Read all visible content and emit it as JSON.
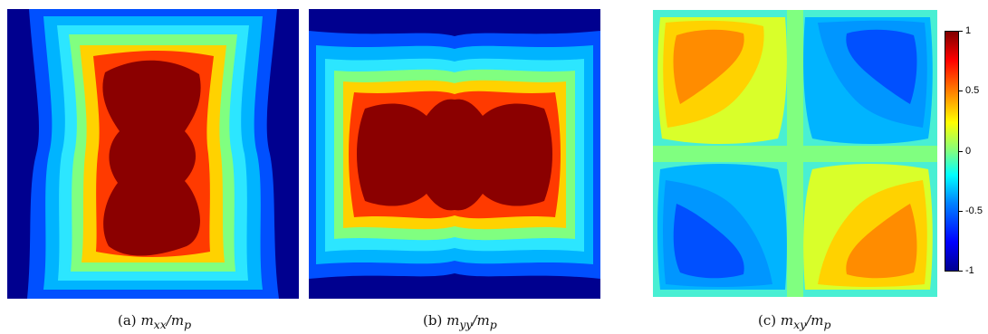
{
  "captions": [
    {
      "tag": "(a)",
      "math": "m_xx/m_p"
    },
    {
      "tag": "(b)",
      "math": "m_yy/m_p"
    },
    {
      "tag": "(c)",
      "math": "m_xy/m_p"
    }
  ],
  "colorbar": {
    "ticks": [
      {
        "value": 1,
        "label": "1"
      },
      {
        "value": 0.5,
        "label": "0.5"
      },
      {
        "value": 0,
        "label": "0"
      },
      {
        "value": -0.5,
        "label": "-0.5"
      },
      {
        "value": -1,
        "label": "-1"
      }
    ],
    "min": -1,
    "max": 1,
    "colormap": "jet"
  },
  "colors": {
    "dark_blue": "#00008f",
    "blue": "#0050ff",
    "light_blue": "#00b4ff",
    "cyan": "#2ce6ff",
    "green": "#80ff80",
    "yellow": "#d9ff2a",
    "gold": "#ffd200",
    "orange": "#ff8c00",
    "red": "#ff3a00",
    "dark_red": "#8b0000"
  },
  "chart_data": [
    {
      "type": "heatmap",
      "panel": "a",
      "quantity": "m_xx/m_p",
      "colormap": "jet",
      "description_levels": [
        "dark_blue",
        "blue",
        "light_blue",
        "cyan",
        "green",
        "gold",
        "red",
        "dark_red"
      ]
    },
    {
      "type": "heatmap",
      "panel": "b",
      "quantity": "m_yy/m_p",
      "colormap": "jet",
      "description_levels": [
        "dark_blue",
        "blue",
        "light_blue",
        "cyan",
        "green",
        "gold",
        "red",
        "dark_red"
      ]
    },
    {
      "type": "heatmap",
      "panel": "c",
      "quantity": "m_xy/m_p",
      "colormap": "jet",
      "clim": [
        -1,
        1
      ]
    }
  ]
}
